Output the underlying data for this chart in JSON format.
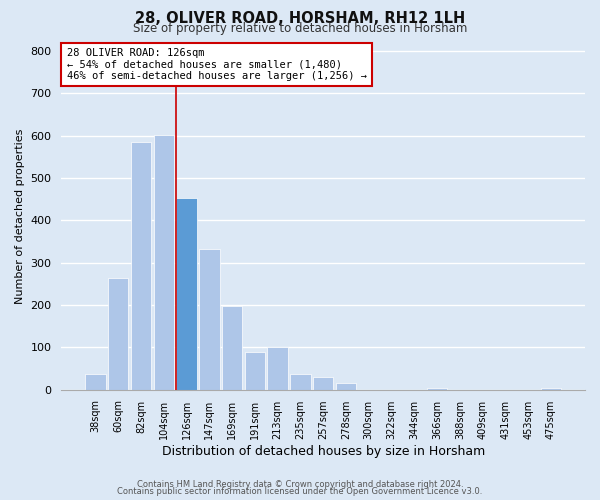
{
  "title": "28, OLIVER ROAD, HORSHAM, RH12 1LH",
  "subtitle": "Size of property relative to detached houses in Horsham",
  "xlabel": "Distribution of detached houses by size in Horsham",
  "ylabel": "Number of detached properties",
  "bar_labels": [
    "38sqm",
    "60sqm",
    "82sqm",
    "104sqm",
    "126sqm",
    "147sqm",
    "169sqm",
    "191sqm",
    "213sqm",
    "235sqm",
    "257sqm",
    "278sqm",
    "300sqm",
    "322sqm",
    "344sqm",
    "366sqm",
    "388sqm",
    "409sqm",
    "431sqm",
    "453sqm",
    "475sqm"
  ],
  "bar_values": [
    37,
    263,
    585,
    601,
    453,
    333,
    197,
    90,
    100,
    37,
    31,
    15,
    0,
    0,
    0,
    5,
    0,
    0,
    0,
    0,
    5
  ],
  "highlight_index": 4,
  "bar_color_normal": "#aec6e8",
  "bar_color_highlight": "#5b9bd5",
  "bar_edge_color": "#ffffff",
  "annotation_title": "28 OLIVER ROAD: 126sqm",
  "annotation_line1": "← 54% of detached houses are smaller (1,480)",
  "annotation_line2": "46% of semi-detached houses are larger (1,256) →",
  "annotation_box_color": "#ffffff",
  "annotation_box_edge": "#cc0000",
  "ylim": [
    0,
    820
  ],
  "yticks": [
    0,
    100,
    200,
    300,
    400,
    500,
    600,
    700,
    800
  ],
  "footer_line1": "Contains HM Land Registry data © Crown copyright and database right 2024.",
  "footer_line2": "Contains public sector information licensed under the Open Government Licence v3.0.",
  "background_color": "#dce8f5",
  "plot_bg_color": "#dce8f5",
  "grid_color": "#ffffff"
}
